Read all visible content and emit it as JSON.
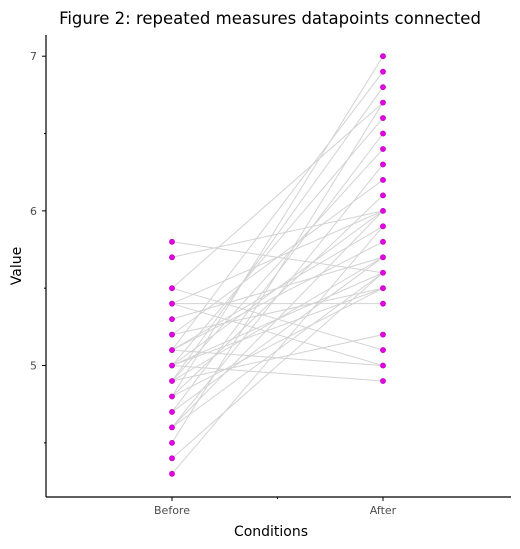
{
  "chart_data": {
    "type": "scatter",
    "title": "Figure 2: repeated measures datapoints connected",
    "xlabel": "Conditions",
    "ylabel": "Value",
    "categories": [
      "Before",
      "After"
    ],
    "ylim": [
      4.15,
      7.15
    ],
    "yticks": [
      5,
      6,
      7
    ],
    "grid": false,
    "colors": {
      "point": "#e600e6",
      "line": "#d3d3d3",
      "axis": "#000000"
    },
    "pairs": [
      [
        5.8,
        5.6
      ],
      [
        5.7,
        6.0
      ],
      [
        5.5,
        6.7
      ],
      [
        5.5,
        5.1
      ],
      [
        5.4,
        6.0
      ],
      [
        5.4,
        5.4
      ],
      [
        5.4,
        5.0
      ],
      [
        5.3,
        5.7
      ],
      [
        5.2,
        6.2
      ],
      [
        5.2,
        5.5
      ],
      [
        5.1,
        5.9
      ],
      [
        5.1,
        6.9
      ],
      [
        5.1,
        5.0
      ],
      [
        5.1,
        5.8
      ],
      [
        5.0,
        6.0
      ],
      [
        5.0,
        6.6
      ],
      [
        5.0,
        5.6
      ],
      [
        5.0,
        4.9
      ],
      [
        5.0,
        5.5
      ],
      [
        4.9,
        6.8
      ],
      [
        4.9,
        6.4
      ],
      [
        4.9,
        5.2
      ],
      [
        4.9,
        5.7
      ],
      [
        4.8,
        7.0
      ],
      [
        4.8,
        5.5
      ],
      [
        4.8,
        6.1
      ],
      [
        4.7,
        6.5
      ],
      [
        4.7,
        5.7
      ],
      [
        4.6,
        6.3
      ],
      [
        4.6,
        5.6
      ],
      [
        4.6,
        6.0
      ],
      [
        4.5,
        6.7
      ],
      [
        4.4,
        5.6
      ],
      [
        4.3,
        5.9
      ]
    ]
  }
}
